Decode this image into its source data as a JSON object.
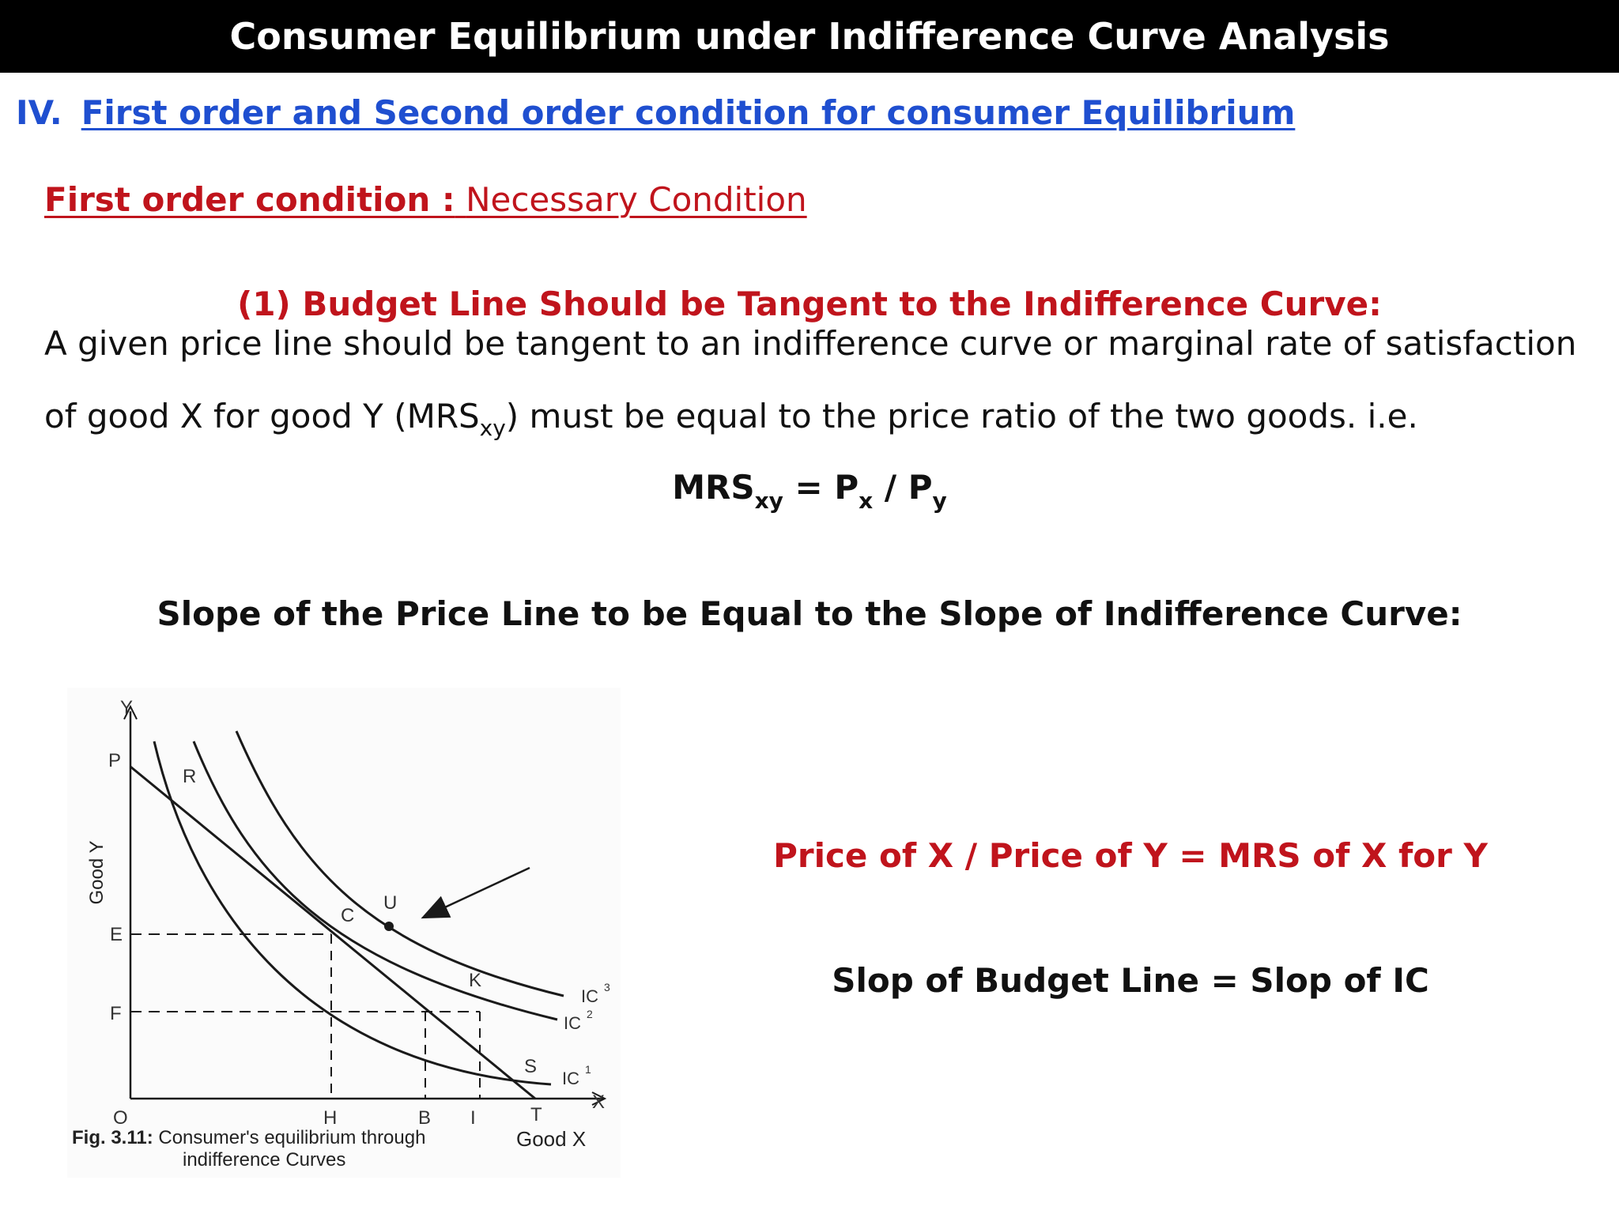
{
  "slide": {
    "title": "Consumer Equilibrium under Indifference Curve Analysis",
    "section_number": "IV.",
    "section_title": "First order and Second order condition for consumer  Equilibrium",
    "first_order_label": "First order condition :",
    "first_order_value": "Necessary Condition",
    "condition_title": "(1) Budget Line Should be Tangent to the Indifference Curve:",
    "paragraph_line1": "A given price line should be tangent to an indifference curve or marginal rate of satisfaction",
    "paragraph_line2_start": "of good X for good Y (MRS",
    "paragraph_line2_sub": "xy",
    "paragraph_line2_end": ") must be equal to the price ratio of the two goods. i.e.",
    "formula": {
      "lhs": "MRS",
      "lhs_sub": "xy",
      "eq": " = P",
      "px_sub": "x",
      "div": " / P",
      "py_sub": "y"
    },
    "slope_heading": "Slope of the Price Line to be Equal to the Slope of Indifference Curve:",
    "price_ratio_text": "Price of X / Price of Y = MRS of X for Y",
    "slope_equation": "Slop of Budget Line  = Slop of IC"
  },
  "figure": {
    "caption_number": "Fig. 3.11:",
    "caption_text": "Consumer's equilibrium through",
    "caption_line2": "indifference Curves",
    "x_axis_label": "Good X",
    "y_axis_label": "Good Y",
    "axis_x_letter": "X",
    "axis_y_letter": "Y",
    "origin": "O",
    "points": {
      "P": "P",
      "R": "R",
      "C": "C",
      "U": "U",
      "K": "K",
      "S": "S",
      "E": "E",
      "F": "F",
      "H": "H",
      "B": "B",
      "I": "I",
      "T": "T"
    },
    "curves": {
      "ic1": "IC",
      "ic1_sup": "1",
      "ic2": "IC",
      "ic2_sup": "2",
      "ic3": "IC",
      "ic3_sup": "3"
    }
  },
  "colors": {
    "title_bar": "#000000",
    "heading_blue": "#1f4fd0",
    "accent_red": "#c0141c"
  }
}
